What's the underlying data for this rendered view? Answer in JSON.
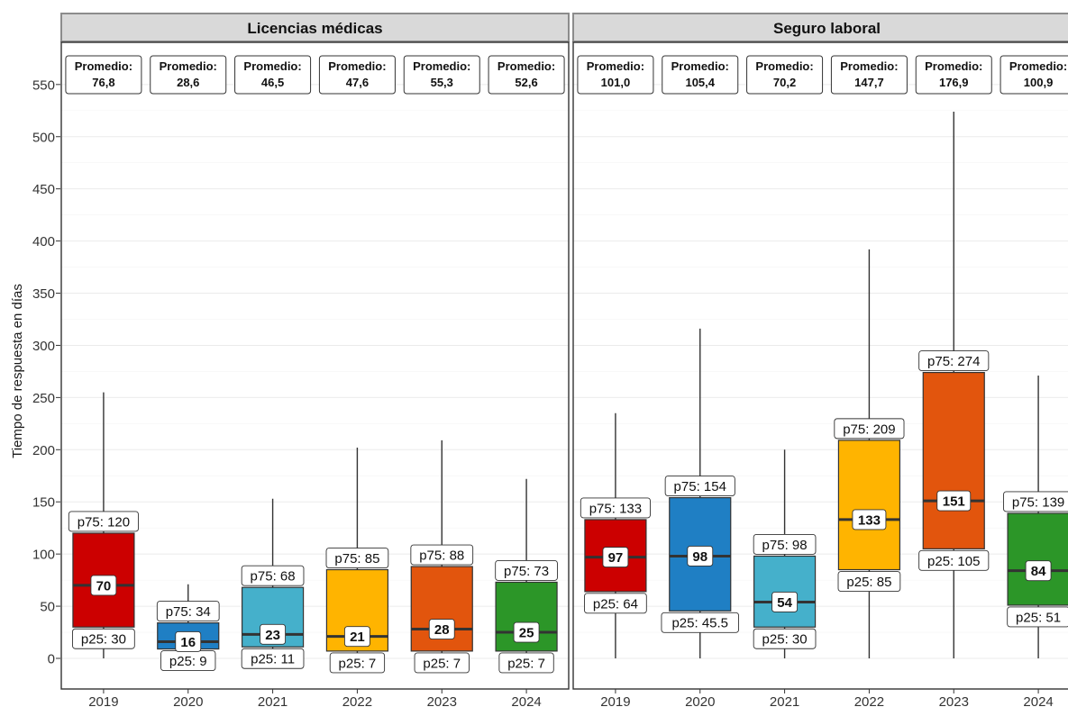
{
  "chart_data": {
    "type": "boxplot",
    "ylabel": "Tiempo de respuesta en días",
    "ylim": [
      -25,
      570
    ],
    "yticks": [
      0,
      50,
      100,
      150,
      200,
      250,
      300,
      350,
      400,
      450,
      500,
      550
    ],
    "categories": [
      "2019",
      "2020",
      "2021",
      "2022",
      "2023",
      "2024"
    ],
    "colors": {
      "2019": "#cc0000",
      "2020": "#1f7fc4",
      "2021": "#45b0cb",
      "2022": "#ffb400",
      "2023": "#e2550d",
      "2024": "#2c9628"
    },
    "stat_labels": {
      "mean": "Promedio:",
      "q3": "p75:",
      "q1": "p25:"
    },
    "panels": [
      {
        "title": "Licencias médicas",
        "boxes": [
          {
            "year": "2019",
            "min": 0,
            "q1": 30,
            "median": 70,
            "q3": 120,
            "max": 255,
            "mean": "76,8",
            "q1_label": "30",
            "median_label": "70",
            "q3_label": "120"
          },
          {
            "year": "2020",
            "min": 0,
            "q1": 9,
            "median": 16,
            "q3": 34,
            "max": 71,
            "mean": "28,6",
            "q1_label": "9",
            "median_label": "16",
            "q3_label": "34"
          },
          {
            "year": "2021",
            "min": 0,
            "q1": 11,
            "median": 23,
            "q3": 68,
            "max": 153,
            "mean": "46,5",
            "q1_label": "11",
            "median_label": "23",
            "q3_label": "68"
          },
          {
            "year": "2022",
            "min": 0,
            "q1": 7,
            "median": 21,
            "q3": 85,
            "max": 202,
            "mean": "47,6",
            "q1_label": "7",
            "median_label": "21",
            "q3_label": "85"
          },
          {
            "year": "2023",
            "min": 0,
            "q1": 7,
            "median": 28,
            "q3": 88,
            "max": 209,
            "mean": "55,3",
            "q1_label": "7",
            "median_label": "28",
            "q3_label": "88"
          },
          {
            "year": "2024",
            "min": 0,
            "q1": 7,
            "median": 25,
            "q3": 73,
            "max": 172,
            "mean": "52,6",
            "q1_label": "7",
            "median_label": "25",
            "q3_label": "73"
          }
        ]
      },
      {
        "title": "Seguro laboral",
        "boxes": [
          {
            "year": "2019",
            "min": 0,
            "q1": 64,
            "median": 97,
            "q3": 133,
            "max": 235,
            "mean": "101,0",
            "q1_label": "64",
            "median_label": "97",
            "q3_label": "133"
          },
          {
            "year": "2020",
            "min": 0,
            "q1": 45.5,
            "median": 98,
            "q3": 154,
            "max": 316,
            "mean": "105,4",
            "q1_label": "45.5",
            "median_label": "98",
            "q3_label": "154"
          },
          {
            "year": "2021",
            "min": 0,
            "q1": 30,
            "median": 54,
            "q3": 98,
            "max": 200,
            "mean": "70,2",
            "q1_label": "30",
            "median_label": "54",
            "q3_label": "98"
          },
          {
            "year": "2022",
            "min": 0,
            "q1": 85,
            "median": 133,
            "q3": 209,
            "max": 392,
            "mean": "147,7",
            "q1_label": "85",
            "median_label": "133",
            "q3_label": "209"
          },
          {
            "year": "2023",
            "min": 0,
            "q1": 105,
            "median": 151,
            "q3": 274,
            "max": 524,
            "mean": "176,9",
            "q1_label": "105",
            "median_label": "151",
            "q3_label": "274"
          },
          {
            "year": "2024",
            "min": 0,
            "q1": 51,
            "median": 84,
            "q3": 139,
            "max": 271,
            "mean": "100,9",
            "q1_label": "51",
            "median_label": "84",
            "q3_label": "139"
          }
        ]
      }
    ]
  }
}
